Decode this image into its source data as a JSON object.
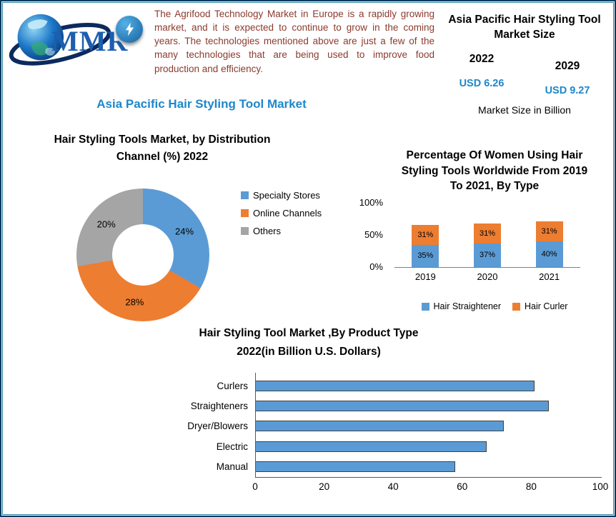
{
  "logo": {
    "text": "MMR"
  },
  "header": {
    "blurb": "The Agrifood Technology Market in Europe is a rapidly growing market, and it is expected to continue to grow in the coming years. The technologies mentioned above are just a few of the many technologies that are being used to improve food production and efficiency.",
    "market_size": {
      "title": "Asia Pacific Hair Styling Tool Market Size",
      "year_start": "2022",
      "year_end": "2029",
      "value_start": "USD 6.26",
      "value_end": "USD 9.27",
      "caption": "Market Size in Billion"
    }
  },
  "main_title": "Asia Pacific Hair Styling Tool Market",
  "palette": {
    "accent_blue": "#1e87c9",
    "text_red": "#8b3a2e",
    "chart_blue": "#5b9bd5",
    "chart_orange": "#ed7d31",
    "chart_gray": "#a5a5a5"
  },
  "chart_data": [
    {
      "type": "pie",
      "donut": true,
      "title": "Hair Styling Tools Market, by Distribution Channel (%) 2022",
      "labels": [
        "Specialty Stores",
        "Online Channels",
        "Others"
      ],
      "values": [
        24,
        28,
        20
      ],
      "colors": [
        "#5b9bd5",
        "#ed7d31",
        "#a5a5a5"
      ],
      "legend_position": "right"
    },
    {
      "type": "bar",
      "subtype": "stacked-vertical",
      "title": "Percentage Of Women Using Hair Styling Tools Worldwide From 2019 To 2021, By Type",
      "categories": [
        "2019",
        "2020",
        "2021"
      ],
      "series": [
        {
          "name": "Hair Straightener",
          "color": "#5b9bd5",
          "values": [
            35,
            37,
            40
          ]
        },
        {
          "name": "Hair Curler",
          "color": "#ed7d31",
          "values": [
            31,
            31,
            31
          ]
        }
      ],
      "yticks": [
        "0%",
        "50%",
        "100%"
      ],
      "ylim": [
        0,
        100
      ],
      "legend_position": "bottom"
    },
    {
      "type": "bar",
      "subtype": "horizontal",
      "title": "Hair Styling Tool Market ,By Product Type 2022(in Billion U.S. Dollars)",
      "categories": [
        "Curlers",
        "Straighteners",
        "Dryer/Blowers",
        "Electric",
        "Manual"
      ],
      "values": [
        81,
        85,
        72,
        67,
        58
      ],
      "xticks": [
        0,
        20,
        40,
        60,
        80,
        100
      ],
      "xlim": [
        0,
        100
      ],
      "color": "#5b9bd5"
    }
  ]
}
